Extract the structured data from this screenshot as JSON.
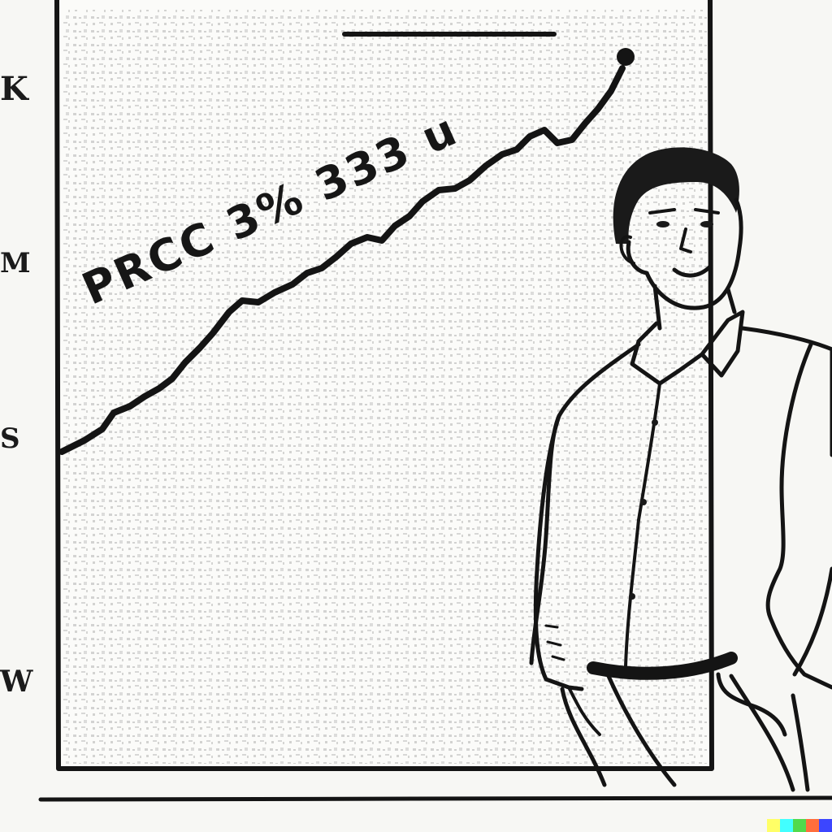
{
  "y_axis_labels": [
    "K",
    "M",
    "S",
    "W"
  ],
  "chart_caption": "PRCC 3% 333 u",
  "colors": {
    "paper": "#f7f7f4",
    "ink": "#141414",
    "grid_speckle": "#9a9a9a"
  },
  "watermark_colors": [
    "#ffff66",
    "#42ffff",
    "#51da4c",
    "#ff6e3c",
    "#3c46ff"
  ]
}
